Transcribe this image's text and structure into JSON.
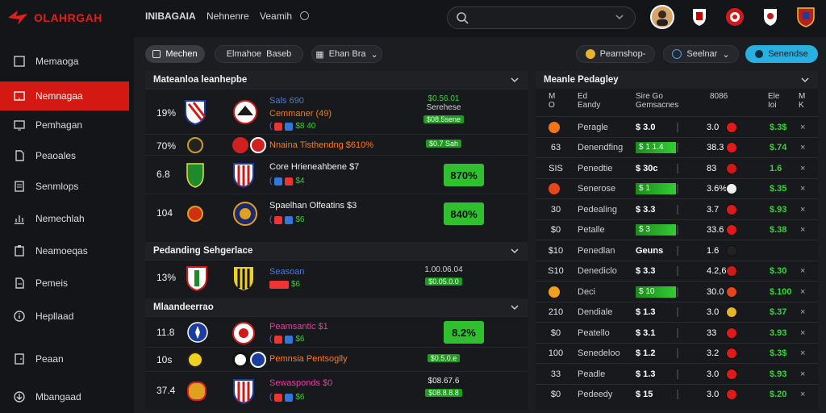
{
  "app": {
    "logo_text": "OLAHRGAH"
  },
  "topnav": [
    "INIBAGAIA",
    "Nehnenre",
    "Veamih"
  ],
  "sidebar": [
    "Memaoga",
    "Nemnagaa",
    "Pemhagan",
    "Peaoales",
    "Senmlops",
    "Nemechlah",
    "Neamoeqas",
    "Pemeis",
    "Hepllaad",
    "Peaan",
    "Mbangaad"
  ],
  "toolbar": {
    "left": [
      "Mechen",
      "Elmahoe",
      "Baseb",
      "Ehan Bra"
    ],
    "right": [
      "Pearnshop-",
      "Seelnar",
      "Senendse"
    ]
  },
  "left_sections": [
    {
      "title": "Mateanloa leanhepbe"
    },
    {
      "title": "Pedanding Sehgerlace"
    },
    {
      "title": "Mlaandeerrao"
    }
  ],
  "matches": [
    {
      "pct": "19%",
      "name": "Sals 690",
      "sub": "Cemmaner (49)",
      "chips_val": "$8 40",
      "odds_top": "$0.56.01",
      "odds_mid": "Serehese",
      "gbar": "$08.5sene",
      "big": ""
    },
    {
      "pct": "70%",
      "name": "Nnaina Tisthendng $610%",
      "sub": "",
      "chips_val": "",
      "odds_top": "",
      "odds_mid": "",
      "gbar": "$0.7 Sah",
      "big": ""
    },
    {
      "pct": "6.8",
      "name": "Core Hrieneahbene $7",
      "sub": "",
      "chips_val": "$4",
      "odds_top": "",
      "odds_mid": "",
      "gbar": "",
      "big": "870%"
    },
    {
      "pct": "104",
      "name": "Spaelhan Olfeatins $3",
      "sub": "",
      "chips_val": "$6",
      "odds_top": "",
      "odds_mid": "",
      "gbar": "",
      "big": "840%"
    },
    {
      "pct": "13%",
      "name": "Seasoan",
      "sub": "",
      "chips_val": "$6",
      "odds_top": "1.00.06.04",
      "odds_mid": "",
      "gbar": "$0.05.0.0",
      "big": ""
    },
    {
      "pct": "11.8",
      "name": "Peamsantic $1",
      "sub": "",
      "chips_val": "$6",
      "odds_top": "",
      "odds_mid": "",
      "gbar": "",
      "big": "8.2%"
    },
    {
      "pct": "10s",
      "name": "Pemnsia Pentsoglly",
      "sub": "",
      "chips_val": "",
      "odds_top": "",
      "odds_mid": "",
      "gbar": "$0.5.0.e",
      "big": ""
    },
    {
      "pct": "37.4",
      "name": "Sewasponds $0",
      "sub": "",
      "chips_val": "$6",
      "odds_top": "$08.67.6",
      "odds_mid": "",
      "gbar": "$08.8.8.8",
      "big": ""
    }
  ],
  "right_panel": {
    "title": "Meanle Pedagley",
    "headers": [
      "M  O",
      "Ed  Eandy",
      "Sire  Go   Gemsacnes",
      "8086",
      "Ele  Ioi",
      "M  K"
    ],
    "rows": [
      {
        "c1": "",
        "c2": "Peragle",
        "c3": "$ 3.0",
        "bar": "",
        "c5": "3.0",
        "c6": "$.3$",
        "x": "×",
        "ico": "#f0761a"
      },
      {
        "c1": "63",
        "c2": "Denendfing",
        "c3": "",
        "bar": "$ 1 1.4",
        "c5": "38.3",
        "c6": "$.74",
        "x": "×",
        "ico": ""
      },
      {
        "c1": "SIS",
        "c2": "Penedtie",
        "c3": "$ 30c",
        "bar": "",
        "c5": "83",
        "c6": "1.6",
        "x": "×",
        "ico": ""
      },
      {
        "c1": "",
        "c2": "Senerose",
        "c3": "$ 1",
        "bar": "$ 1",
        "c5": "3.6%",
        "c6": "$.35",
        "x": "×",
        "ico": "#e8461a"
      },
      {
        "c1": "30",
        "c2": "Pedealing",
        "c3": "$ 3.3",
        "bar": "",
        "c5": "3.7",
        "c6": "$.93",
        "x": "×",
        "ico": ""
      },
      {
        "c1": "$0",
        "c2": "Petalle",
        "c3": "",
        "bar": "$ 3",
        "c5": "33.6",
        "c6": "$.38",
        "x": "×",
        "ico": ""
      },
      {
        "c1": "$10",
        "c2": "Penedlan",
        "c3": "Geuns",
        "bar": "",
        "c5": "1.6",
        "c6": "",
        "x": "",
        "ico": ""
      },
      {
        "c1": "S10",
        "c2": "Denediclo",
        "c3": "$ 3.3",
        "bar": "",
        "c5": "4.2,6",
        "c6": "$.30",
        "x": "×",
        "ico": ""
      },
      {
        "c1": "",
        "c2": "Deci",
        "c3": "",
        "bar": "$ 10",
        "c5": "30.0",
        "c6": "$.100",
        "x": "×",
        "ico": "#f0a01a"
      },
      {
        "c1": "210",
        "c2": "Dendiale",
        "c3": "$ 1.3",
        "bar": "",
        "c5": "3.0",
        "c6": "$.37",
        "x": "×",
        "ico": ""
      },
      {
        "c1": "$0",
        "c2": "Peatello",
        "c3": "$ 3.1",
        "bar": "",
        "c5": "33",
        "c6": "3.93",
        "x": "×",
        "ico": ""
      },
      {
        "c1": "100",
        "c2": "Senedeloo",
        "c3": "$ 1.2",
        "bar": "",
        "c5": "3.2",
        "c6": "$.3$",
        "x": "×",
        "ico": ""
      },
      {
        "c1": "33",
        "c2": "Peadle",
        "c3": "$ 1.3",
        "bar": "",
        "c5": "3.0",
        "c6": "$.93",
        "x": "×",
        "ico": ""
      },
      {
        "c1": "$0",
        "c2": "Pedeedy",
        "c3": "$ 15",
        "bar": "",
        "c5": "3.0",
        "c6": "$.20",
        "x": "×",
        "ico": ""
      }
    ]
  }
}
